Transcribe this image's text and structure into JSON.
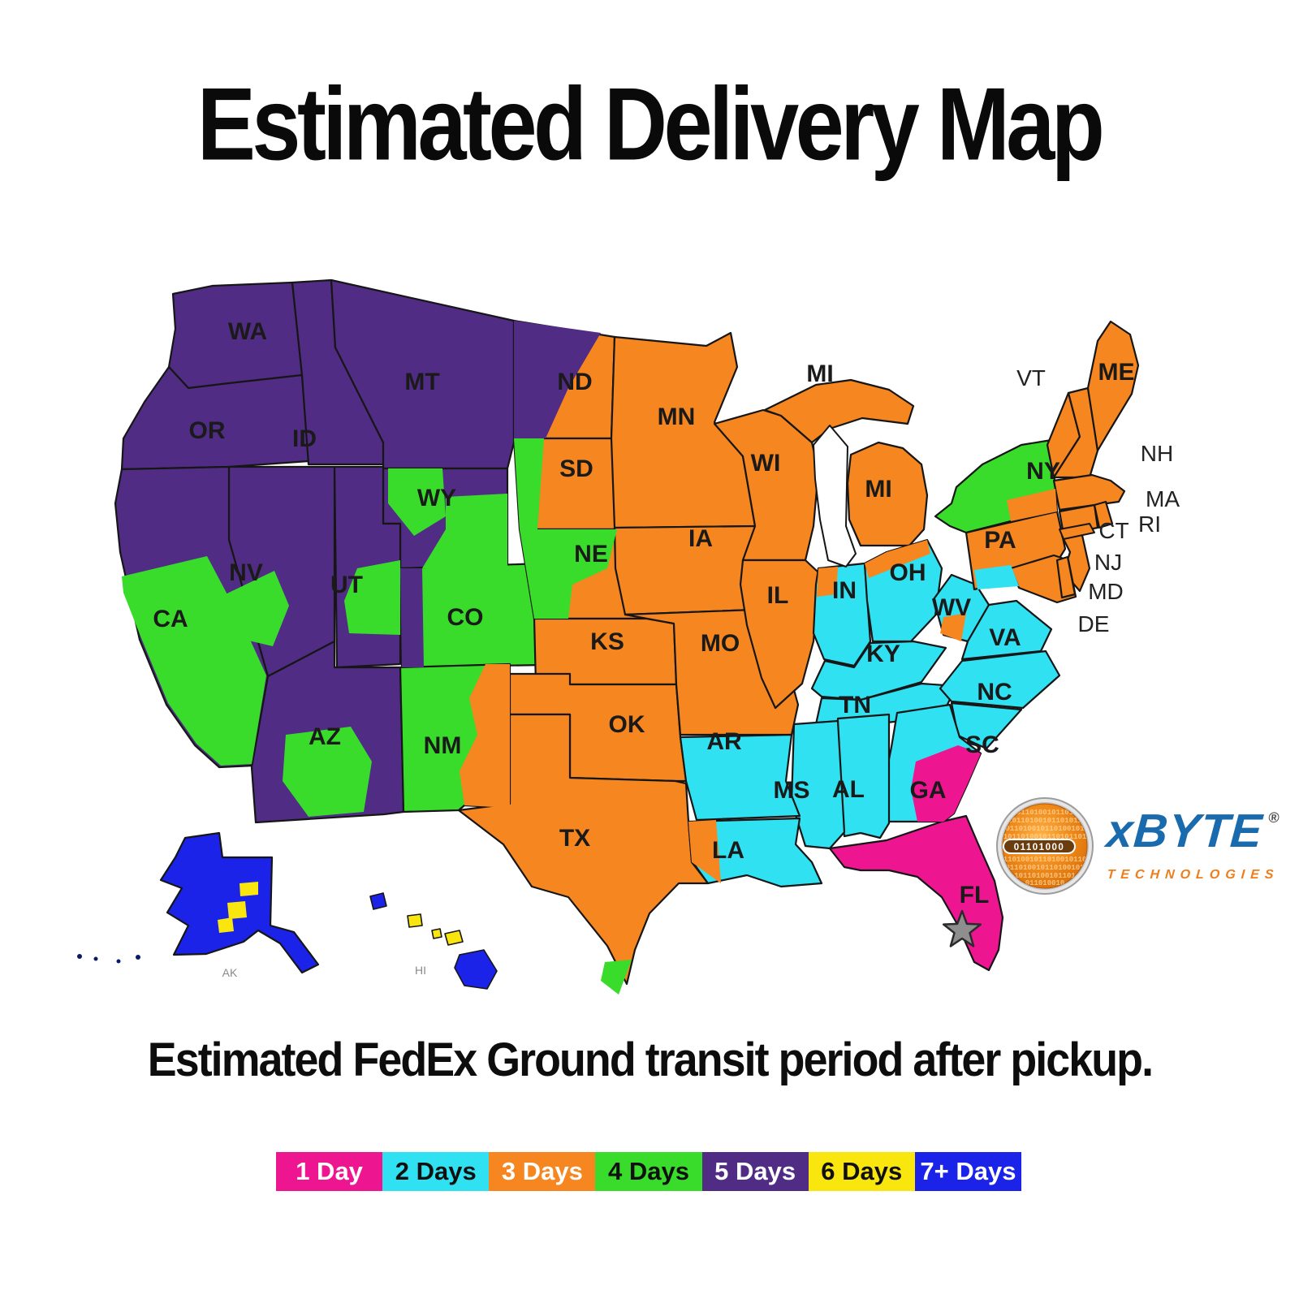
{
  "title": "Estimated Delivery Map",
  "subtitle": "Estimated FedEx Ground transit period after pickup.",
  "zones": {
    "1": {
      "label": "1 Day",
      "color": "#EE1690",
      "text_color": "#ffffff"
    },
    "2": {
      "label": "2 Days",
      "color": "#30E1F2",
      "text_color": "#101010"
    },
    "3": {
      "label": "3 Days",
      "color": "#F6861F",
      "text_color": "#ffffff"
    },
    "4": {
      "label": "4 Days",
      "color": "#39DC2B",
      "text_color": "#101010"
    },
    "5": {
      "label": "5 Days",
      "color": "#512C85",
      "text_color": "#ffffff"
    },
    "6": {
      "label": "6 Days",
      "color": "#F9E60E",
      "text_color": "#101010"
    },
    "7": {
      "label": "7+ Days",
      "color": "#1B23E8",
      "text_color": "#ffffff"
    }
  },
  "legend": {
    "order": [
      "1",
      "2",
      "3",
      "4",
      "5",
      "6",
      "7"
    ]
  },
  "map": {
    "states": [
      {
        "id": "WA",
        "label": "WA",
        "zone": "5"
      },
      {
        "id": "OR",
        "label": "OR",
        "zone": "5"
      },
      {
        "id": "ID",
        "label": "ID",
        "zone": "5"
      },
      {
        "id": "MT",
        "label": "MT",
        "zone": "5"
      },
      {
        "id": "WY",
        "label": "WY",
        "zone": "5"
      },
      {
        "id": "UT",
        "label": "UT",
        "zone": "5"
      },
      {
        "id": "NV",
        "label": "NV",
        "zone": "5"
      },
      {
        "id": "CA",
        "label": "CA",
        "zone": "5"
      },
      {
        "id": "AZ",
        "label": "AZ",
        "zone": "5"
      },
      {
        "id": "CO",
        "label": "CO",
        "zone": "4"
      },
      {
        "id": "NM",
        "label": "NM",
        "zone": "4"
      },
      {
        "id": "ND",
        "label": "ND",
        "zone": "3"
      },
      {
        "id": "SD",
        "label": "SD",
        "zone": "3"
      },
      {
        "id": "NE",
        "label": "NE",
        "zone": "3"
      },
      {
        "id": "KS",
        "label": "KS",
        "zone": "3"
      },
      {
        "id": "OK",
        "label": "OK",
        "zone": "3"
      },
      {
        "id": "TX",
        "label": "TX",
        "zone": "3"
      },
      {
        "id": "MN",
        "label": "MN",
        "zone": "3"
      },
      {
        "id": "IA",
        "label": "IA",
        "zone": "3"
      },
      {
        "id": "MO",
        "label": "MO",
        "zone": "3"
      },
      {
        "id": "WI",
        "label": "WI",
        "zone": "3"
      },
      {
        "id": "MI-UP",
        "label": "",
        "zone": "3"
      },
      {
        "id": "MI",
        "label": "MI",
        "zone": "3"
      },
      {
        "id": "IL",
        "label": "IL",
        "zone": "3"
      },
      {
        "id": "IN",
        "label": "IN",
        "zone": "2"
      },
      {
        "id": "OH",
        "label": "OH",
        "zone": "2"
      },
      {
        "id": "KY",
        "label": "KY",
        "zone": "2"
      },
      {
        "id": "TN",
        "label": "TN",
        "zone": "2"
      },
      {
        "id": "WV",
        "label": "WV",
        "zone": "2"
      },
      {
        "id": "VA",
        "label": "VA",
        "zone": "2"
      },
      {
        "id": "NC",
        "label": "NC",
        "zone": "2"
      },
      {
        "id": "SC",
        "label": "SC",
        "zone": "2"
      },
      {
        "id": "GA",
        "label": "GA",
        "zone": "2"
      },
      {
        "id": "AL",
        "label": "AL",
        "zone": "2"
      },
      {
        "id": "MS",
        "label": "MS",
        "zone": "2"
      },
      {
        "id": "AR",
        "label": "AR",
        "zone": "2"
      },
      {
        "id": "LA",
        "label": "LA",
        "zone": "2"
      },
      {
        "id": "FL",
        "label": "FL",
        "zone": "1"
      },
      {
        "id": "PA",
        "label": "PA",
        "zone": "3"
      },
      {
        "id": "NY",
        "label": "NY",
        "zone": "4"
      },
      {
        "id": "VT",
        "label": "VT",
        "zone": "3"
      },
      {
        "id": "NH",
        "label": "NH",
        "zone": "3"
      },
      {
        "id": "ME",
        "label": "ME",
        "zone": "3"
      },
      {
        "id": "MA",
        "label": "MA",
        "zone": "3"
      },
      {
        "id": "CT",
        "label": "CT",
        "zone": "3"
      },
      {
        "id": "RI",
        "label": "RI",
        "zone": "3"
      },
      {
        "id": "NJ",
        "label": "NJ",
        "zone": "3"
      },
      {
        "id": "MD",
        "label": "MD",
        "zone": "3"
      },
      {
        "id": "DE",
        "label": "DE",
        "zone": "3"
      },
      {
        "id": "AK",
        "label": "AK",
        "zone": "7"
      }
    ],
    "patches": [
      {
        "id": "CA-south",
        "zone": "4"
      },
      {
        "id": "NV-central",
        "zone": "4"
      },
      {
        "id": "AZ-central",
        "zone": "4"
      },
      {
        "id": "UT-east",
        "zone": "4"
      },
      {
        "id": "WY-nw",
        "zone": "4"
      },
      {
        "id": "WY-se",
        "zone": "4"
      },
      {
        "id": "CO-west",
        "zone": "5"
      },
      {
        "id": "ND-west",
        "zone": "5"
      },
      {
        "id": "SD-west",
        "zone": "4"
      },
      {
        "id": "NE-west",
        "zone": "4"
      },
      {
        "id": "NM-east",
        "zone": "3"
      },
      {
        "id": "TX-tip",
        "zone": "4"
      },
      {
        "id": "IN-nw",
        "zone": "3"
      },
      {
        "id": "OH-north",
        "zone": "3"
      },
      {
        "id": "WV-center",
        "zone": "3"
      },
      {
        "id": "LA-west",
        "zone": "3"
      },
      {
        "id": "PA-south",
        "zone": "2"
      },
      {
        "id": "NY-south",
        "zone": "3"
      },
      {
        "id": "NY-longisland",
        "zone": "3"
      },
      {
        "id": "GA-se",
        "zone": "1"
      },
      {
        "id": "AK-y1",
        "zone": "6"
      },
      {
        "id": "AK-y2",
        "zone": "6"
      },
      {
        "id": "AK-y3",
        "zone": "6"
      }
    ],
    "islands": [
      {
        "id": "HI-kauai",
        "zone": "7"
      },
      {
        "id": "HI-oahu",
        "zone": "6"
      },
      {
        "id": "HI-molokai",
        "zone": "6"
      },
      {
        "id": "HI-maui",
        "zone": "6"
      },
      {
        "id": "HI-big",
        "zone": "7"
      }
    ],
    "extra_labels": [
      {
        "id": "MI-upper",
        "text": "MI"
      },
      {
        "id": "HI",
        "text": "HI"
      }
    ],
    "star": {
      "fill": "#8E8E8E",
      "outline": "#2B2B2B"
    }
  },
  "logo": {
    "brand": "xBYTE",
    "registered": "®",
    "tagline": "TECHNOLOGIES",
    "globe_binary": "01101000",
    "brand_color": "#1A6BAE",
    "tagline_color": "#EE7E1B",
    "globe_color": "#F08A1A"
  }
}
